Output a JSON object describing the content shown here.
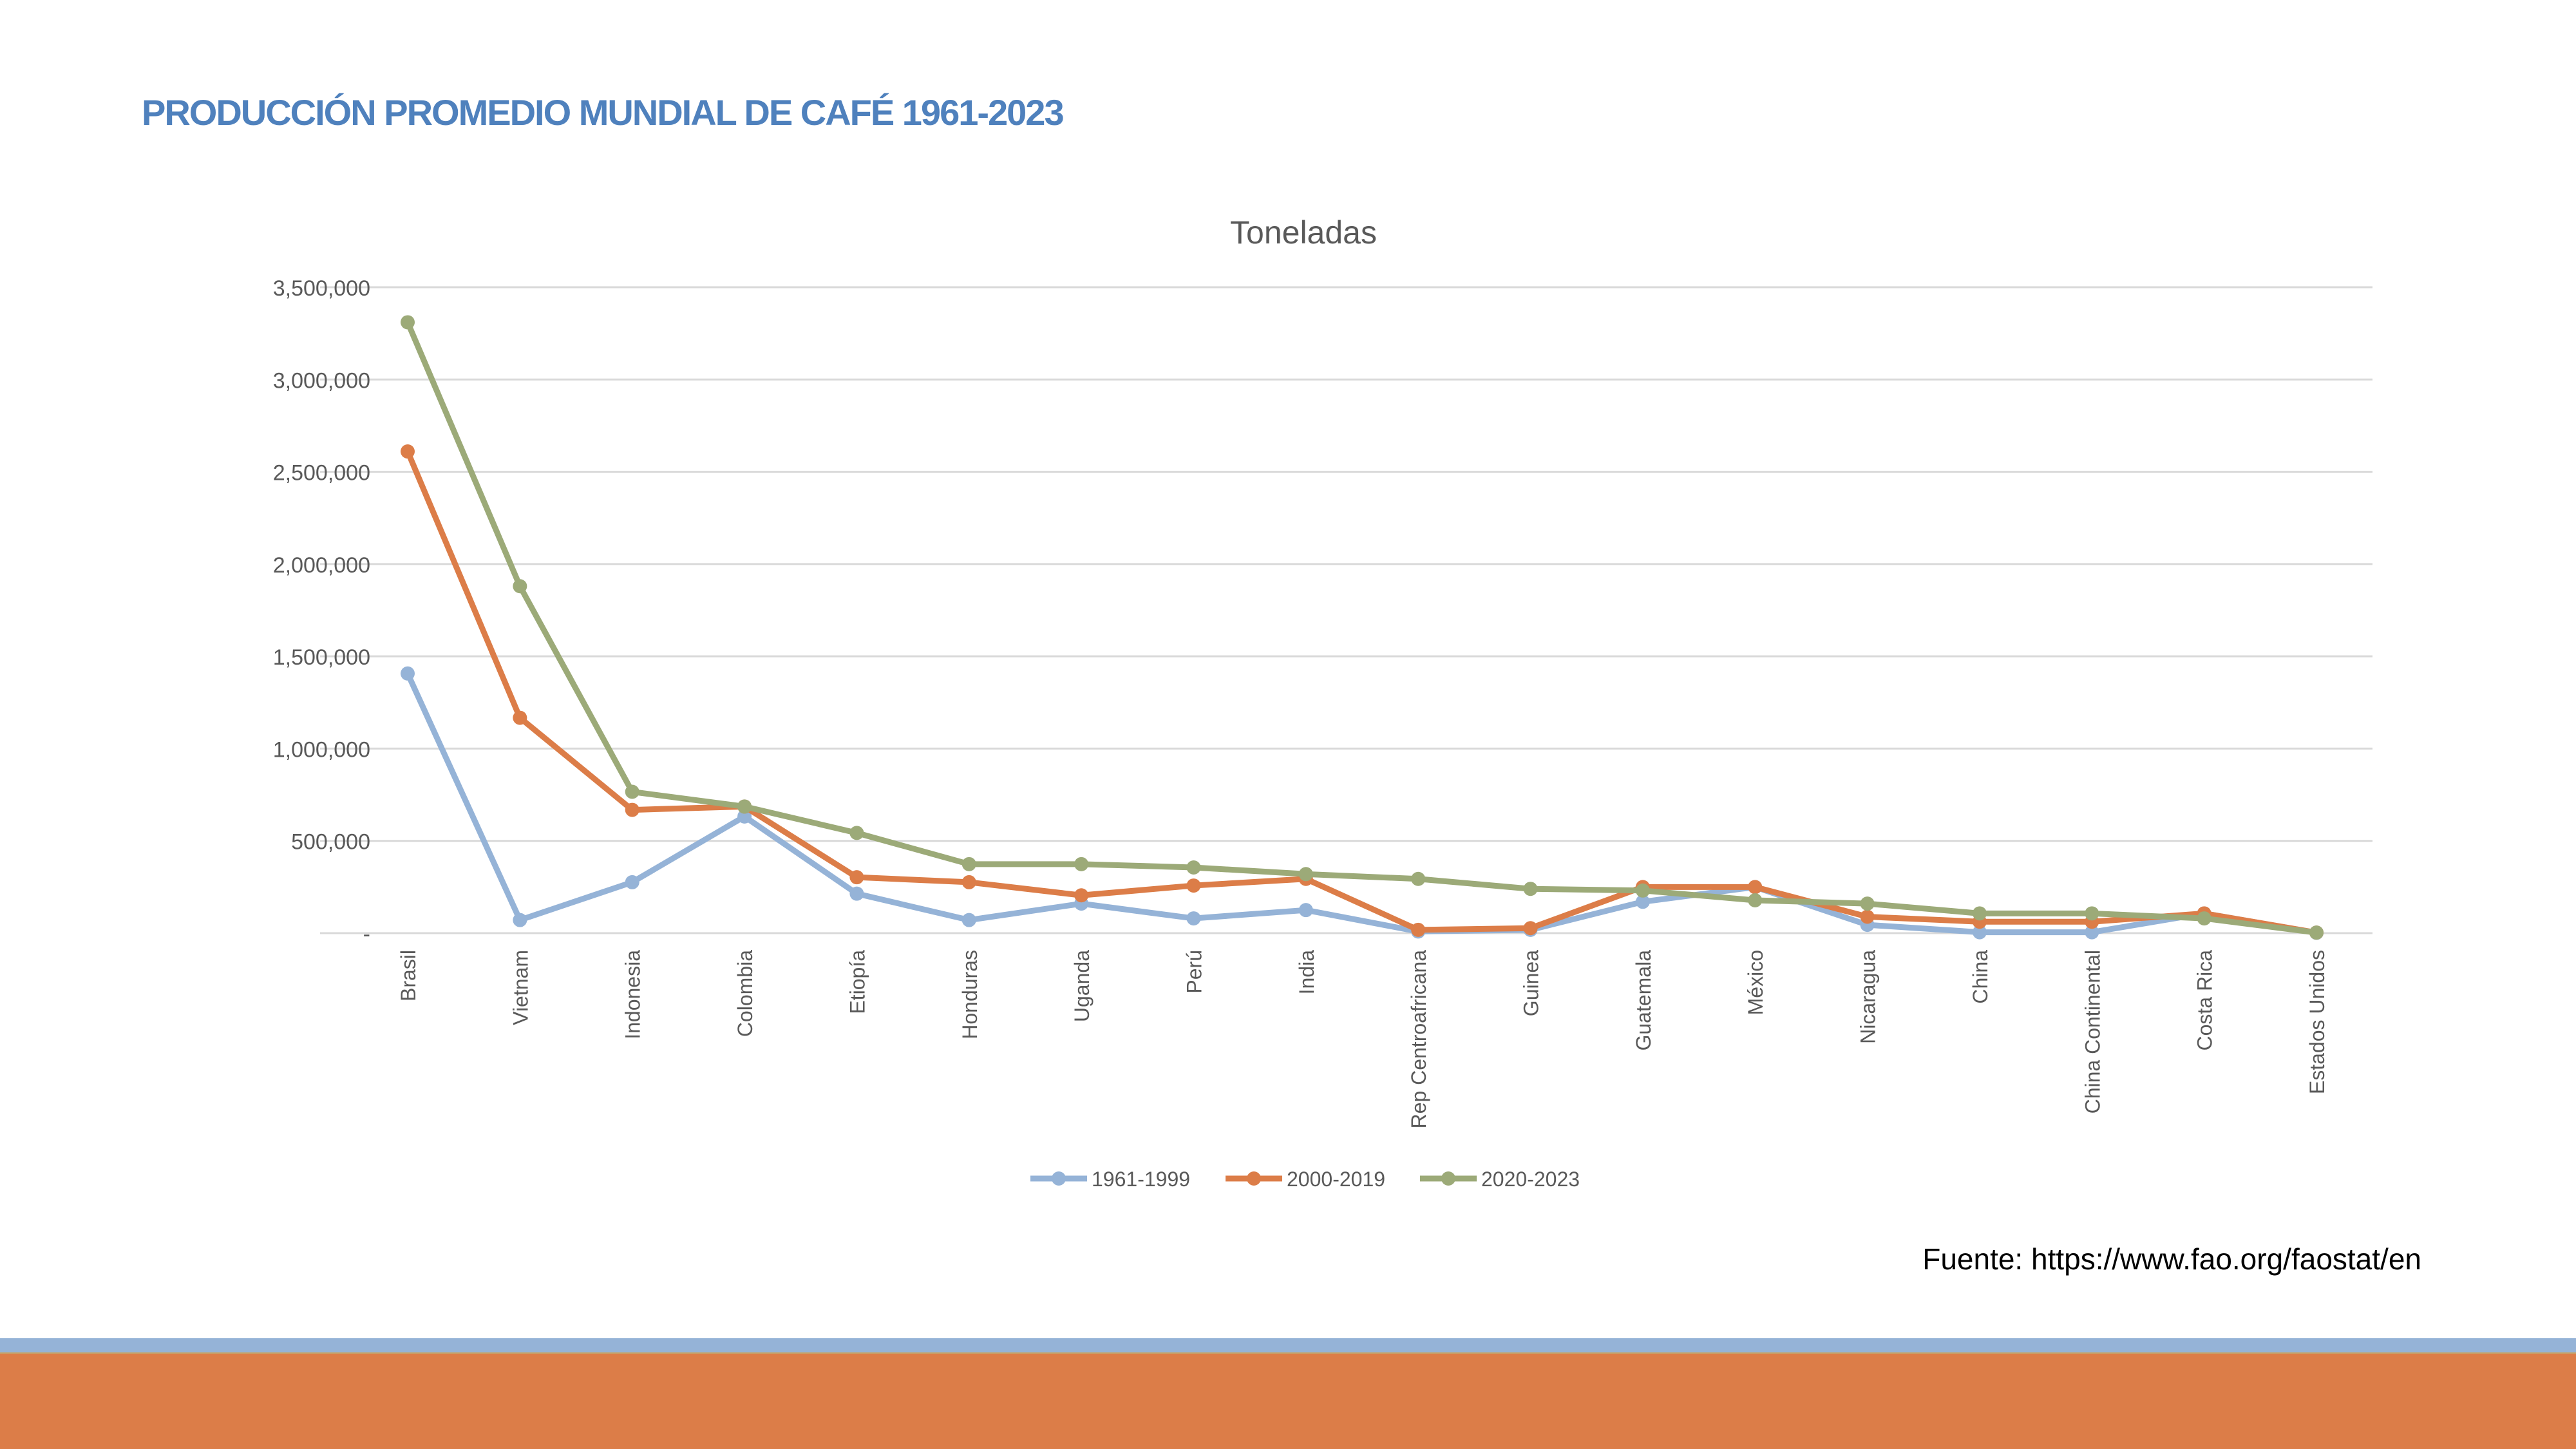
{
  "page_title": "PRODUCCIÓN PROMEDIO MUNDIAL DE CAFÉ 1961-2023",
  "source": "Fuente: https://www.fao.org/faostat/en",
  "chart_data": {
    "type": "line",
    "title": "Toneladas",
    "xlabel": "",
    "ylabel": "",
    "ylim": [
      0,
      3500000
    ],
    "yticks": [
      0,
      500000,
      1000000,
      1500000,
      2000000,
      2500000,
      3000000,
      3500000
    ],
    "ytick_labels": [
      "-",
      "500,000",
      "1,000,000",
      "1,500,000",
      "2,000,000",
      "2,500,000",
      "3,000,000",
      "3,500,000"
    ],
    "grid": true,
    "legend_position": "bottom",
    "categories": [
      "Brasil",
      "Vietnam",
      "Indonesia",
      "Colombia",
      "Etiopía",
      "Honduras",
      "Uganda",
      "Perú",
      "India",
      "Rep Centroafricana",
      "Guinea",
      "Guatemala",
      "México",
      "Nicaragua",
      "China",
      "China Continental",
      "Costa Rica",
      "Estados Unidos"
    ],
    "series": [
      {
        "name": "1961-1999",
        "color": "#95b3d7",
        "values": [
          1407000,
          71000,
          276000,
          632000,
          214000,
          71000,
          160000,
          80000,
          125000,
          9000,
          18000,
          170000,
          250000,
          45000,
          5000,
          5000,
          107000,
          2000
        ]
      },
      {
        "name": "2000-2019",
        "color": "#dc7d48",
        "values": [
          2610000,
          1167000,
          668000,
          686000,
          303000,
          276000,
          205000,
          258000,
          294000,
          18000,
          27000,
          250000,
          250000,
          89000,
          62000,
          62000,
          107000,
          3000
        ]
      },
      {
        "name": "2020-2023",
        "color": "#9caa78",
        "values": [
          3310000,
          1880000,
          766000,
          686000,
          543000,
          374000,
          374000,
          356000,
          320000,
          294000,
          240000,
          231000,
          178000,
          160000,
          107000,
          107000,
          80000,
          3000
        ]
      }
    ]
  }
}
